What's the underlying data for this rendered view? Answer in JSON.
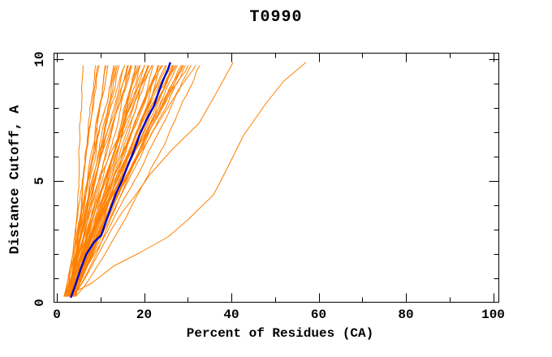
{
  "title": "T0990",
  "axes": {
    "x": {
      "label": "Percent of Residues (CA)",
      "major_ticks": [
        0,
        20,
        40,
        60,
        80,
        100
      ],
      "minor_ticks": [
        10,
        30,
        50,
        70,
        90
      ],
      "range": [
        0,
        100
      ]
    },
    "y": {
      "label": "Distance Cutoff, A",
      "major_ticks": [
        0,
        5,
        10
      ],
      "minor_ticks": [
        1,
        2,
        3,
        4,
        6,
        7,
        8,
        9
      ],
      "range": [
        0,
        10
      ]
    }
  },
  "colors": {
    "model_lines": "#FF8000",
    "highlighted_line": "#0000CD",
    "axis": "#000000",
    "background": "#FFFFFF"
  },
  "chart_data": {
    "type": "line",
    "title": "T0990",
    "xlabel": "Percent of Residues (CA)",
    "ylabel": "Distance Cutoff, A",
    "xlim": [
      0,
      100
    ],
    "ylim": [
      0,
      10
    ],
    "grid": false,
    "legend": null,
    "description": "Percent of CA residues within a distance cutoff for many predicted models (orange); highlighted model in blue.",
    "series": [
      {
        "name": "highlighted-model",
        "color": "#0000CD",
        "width": 2.4,
        "points": [
          [
            3.2,
            0.2
          ],
          [
            4.3,
            0.75
          ],
          [
            5.5,
            1.4
          ],
          [
            6.8,
            2.0
          ],
          [
            8.6,
            2.5
          ],
          [
            10.2,
            2.77
          ],
          [
            11.2,
            3.3
          ],
          [
            12.4,
            3.9
          ],
          [
            13.6,
            4.5
          ],
          [
            14.9,
            5.0
          ],
          [
            16.2,
            5.6
          ],
          [
            17.6,
            6.2
          ],
          [
            19.0,
            6.9
          ],
          [
            20.5,
            7.5
          ],
          [
            22.3,
            8.1
          ],
          [
            23.4,
            8.7
          ],
          [
            24.5,
            9.2
          ],
          [
            25.5,
            9.6
          ],
          [
            26.0,
            9.87
          ]
        ]
      },
      {
        "name": "outlier-model-a",
        "color": "#FF8000",
        "width": 1,
        "points": [
          [
            4.0,
            0.3
          ],
          [
            6.5,
            1.0
          ],
          [
            9.5,
            2.0
          ],
          [
            12.5,
            3.0
          ],
          [
            14.9,
            3.7
          ],
          [
            17.7,
            4.33
          ],
          [
            21.5,
            5.3
          ],
          [
            26.5,
            6.3
          ],
          [
            32.6,
            7.37
          ],
          [
            36.5,
            8.6
          ],
          [
            40.4,
            9.87
          ]
        ]
      },
      {
        "name": "outlier-model-b",
        "color": "#FF8000",
        "width": 1,
        "points": [
          [
            3.3,
            0.37
          ],
          [
            8.0,
            0.8
          ],
          [
            13.0,
            1.5
          ],
          [
            19.0,
            2.05
          ],
          [
            25.5,
            2.7
          ],
          [
            30.0,
            3.4
          ],
          [
            35.9,
            4.43
          ],
          [
            39.0,
            5.5
          ],
          [
            42.8,
            6.87
          ],
          [
            48.0,
            8.2
          ],
          [
            52.0,
            9.1
          ],
          [
            57.1,
            9.87
          ]
        ]
      }
    ],
    "bundle": {
      "name": "model-bundle",
      "color": "#FF8000",
      "width": 1,
      "cutoff_min": 0.25,
      "cutoff_max": 9.75,
      "cutoff_step": 0.25,
      "start_percent_range": [
        1.6,
        4.3
      ],
      "end_percents": [
        6.9,
        8.6,
        9.4,
        10.2,
        10.8,
        11.5,
        12.1,
        12.7,
        13.2,
        13.7,
        14.1,
        14.5,
        14.9,
        15.3,
        15.7,
        16.1,
        16.5,
        16.9,
        17.3,
        17.7,
        18.1,
        18.5,
        18.9,
        19.3,
        19.7,
        20.1,
        20.5,
        20.9,
        21.3,
        21.7,
        22.1,
        22.5,
        22.9,
        23.3,
        23.7,
        24.1,
        24.5,
        24.9,
        25.3,
        25.7,
        26.1,
        26.5,
        27.0,
        27.5,
        28.0,
        28.5,
        29.0,
        29.5,
        30.0,
        30.4,
        29.2,
        28.2,
        27.2,
        31.6,
        32.6
      ],
      "seed": 42
    }
  }
}
